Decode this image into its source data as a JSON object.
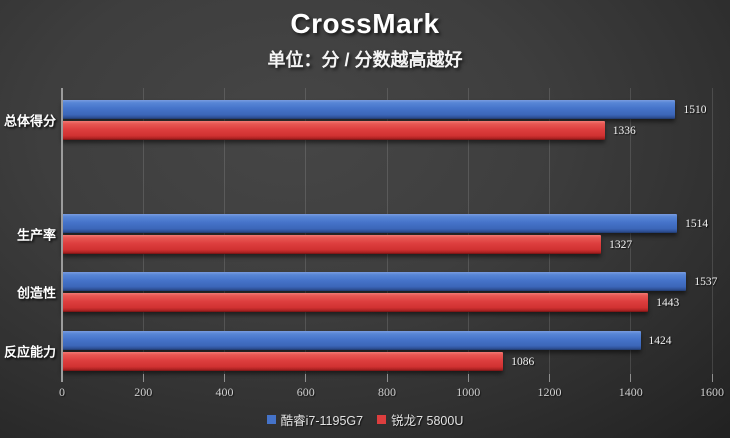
{
  "chart_data": {
    "type": "bar",
    "orientation": "horizontal",
    "title": "CrossMark",
    "subtitle": "单位：分 / 分数越高越好",
    "categories": [
      "总体得分",
      "生产率",
      "创造性",
      "反应能力"
    ],
    "series": [
      {
        "name": "酷睿i7-1195G7",
        "color": "#4573c9",
        "values": [
          1510,
          1514,
          1537,
          1424
        ]
      },
      {
        "name": "锐龙7 5800U",
        "color": "#dd3e3e",
        "values": [
          1336,
          1327,
          1443,
          1086
        ]
      }
    ],
    "xlim": [
      0,
      1600
    ],
    "x_ticks": [
      0,
      200,
      400,
      600,
      800,
      1000,
      1200,
      1400,
      1600
    ],
    "grid": true,
    "legend_position": "bottom",
    "value_labels": true,
    "background": "dark-gray-gradient"
  }
}
